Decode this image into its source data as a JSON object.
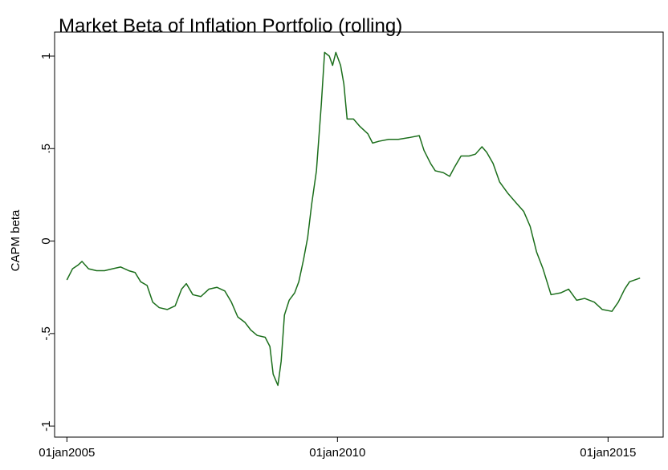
{
  "chart_data": {
    "type": "line",
    "title": "Market Beta of Inflation Portfolio (rolling)",
    "y_label": "CAPM beta",
    "color": "#1b6e1b",
    "grid": false,
    "x": [
      "2005-01-01",
      "2005-02-08",
      "2005-03-17",
      "2005-04-13",
      "2005-05-27",
      "2005-07-20",
      "2005-09-12",
      "2005-11-05",
      "2005-12-29",
      "2006-02-22",
      "2006-04-06",
      "2006-05-14",
      "2006-06-26",
      "2006-08-03",
      "2006-09-16",
      "2006-11-09",
      "2007-01-02",
      "2007-02-14",
      "2007-03-18",
      "2007-05-01",
      "2007-06-24",
      "2007-08-17",
      "2007-10-10",
      "2007-12-03",
      "2008-01-16",
      "2008-02-28",
      "2008-04-17",
      "2008-05-25",
      "2008-07-08",
      "2008-08-31",
      "2008-10-02",
      "2008-10-24",
      "2008-11-25",
      "2008-12-17",
      "2009-01-08",
      "2009-02-09",
      "2009-03-18",
      "2009-04-15",
      "2009-05-17",
      "2009-06-14",
      "2009-07-11",
      "2009-08-12",
      "2009-09-14",
      "2009-10-06",
      "2009-11-07",
      "2009-11-29",
      "2009-12-21",
      "2010-01-22",
      "2010-02-13",
      "2010-03-07",
      "2010-04-19",
      "2010-06-01",
      "2010-07-25",
      "2010-08-26",
      "2010-10-09",
      "2010-12-13",
      "2011-02-16",
      "2011-05-03",
      "2011-07-07",
      "2011-08-08",
      "2011-09-21",
      "2011-10-23",
      "2011-12-16",
      "2012-01-28",
      "2012-03-01",
      "2012-04-14",
      "2012-06-07",
      "2012-07-20",
      "2012-09-02",
      "2012-10-04",
      "2012-11-16",
      "2012-12-30",
      "2013-02-22",
      "2013-04-28",
      "2013-06-11",
      "2013-07-24",
      "2013-09-06",
      "2013-10-19",
      "2013-12-12",
      "2014-02-15",
      "2014-04-10",
      "2014-06-03",
      "2014-07-27",
      "2014-09-30",
      "2014-11-23",
      "2015-01-27",
      "2015-03-11",
      "2015-04-23",
      "2015-05-26",
      "2015-08-05"
    ],
    "values": [
      -0.21,
      -0.15,
      -0.13,
      -0.11,
      -0.15,
      -0.16,
      -0.16,
      -0.15,
      -0.14,
      -0.16,
      -0.17,
      -0.22,
      -0.24,
      -0.33,
      -0.36,
      -0.37,
      -0.35,
      -0.26,
      -0.23,
      -0.29,
      -0.3,
      -0.26,
      -0.25,
      -0.27,
      -0.33,
      -0.41,
      -0.44,
      -0.48,
      -0.51,
      -0.52,
      -0.57,
      -0.72,
      -0.78,
      -0.65,
      -0.4,
      -0.32,
      -0.28,
      -0.22,
      -0.1,
      0.02,
      0.2,
      0.38,
      0.74,
      1.02,
      1.0,
      0.95,
      1.02,
      0.95,
      0.85,
      0.66,
      0.66,
      0.62,
      0.58,
      0.53,
      0.54,
      0.55,
      0.55,
      0.56,
      0.57,
      0.49,
      0.42,
      0.38,
      0.37,
      0.35,
      0.4,
      0.46,
      0.46,
      0.47,
      0.51,
      0.48,
      0.42,
      0.32,
      0.26,
      0.2,
      0.16,
      0.08,
      -0.06,
      -0.15,
      -0.29,
      -0.28,
      -0.26,
      -0.32,
      -0.31,
      -0.33,
      -0.37,
      -0.38,
      -0.33,
      -0.26,
      -0.22,
      -0.2
    ],
    "xlim": [
      "2004-10-10",
      "2016-01-08"
    ],
    "xticks": [
      {
        "value": "2005-01-01",
        "label": "01jan2005"
      },
      {
        "value": "2010-01-01",
        "label": "01jan2010"
      },
      {
        "value": "2015-01-01",
        "label": "01jan2015"
      }
    ],
    "ylim": [
      -1.06,
      1.13
    ],
    "yticks": [
      -1,
      {
        "value": -0.5,
        "label": "-.5"
      },
      0,
      {
        "value": 0.5,
        "label": ".5"
      },
      1
    ]
  }
}
